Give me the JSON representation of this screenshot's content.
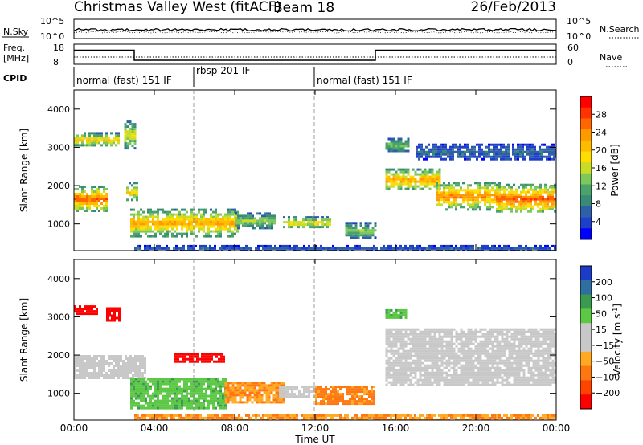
{
  "header": {
    "title": "Christmas Valley West (fitACF)",
    "beam": "Beam 18",
    "date": "26/Feb/2013"
  },
  "noise_panel": {
    "left_label": "N.Sky",
    "right_label": "N.Search",
    "left_ticks": [
      "10^5",
      "10^0"
    ],
    "right_ticks": [
      "10^5",
      "10^0"
    ]
  },
  "freq_panel": {
    "left_label_line1": "Freq.",
    "left_label_line2": "[MHz]",
    "left_ticks": [
      "18",
      "8"
    ],
    "right_ticks": [
      "60",
      "0"
    ],
    "right_label": "Nave",
    "freq_steps": [
      {
        "from": 0,
        "to": 3,
        "mhz": 15
      },
      {
        "from": 3,
        "to": 15,
        "mhz": 10
      },
      {
        "from": 15,
        "to": 24,
        "mhz": 15
      }
    ]
  },
  "cpid_panel": {
    "label": "CPID",
    "segments": [
      {
        "from": 0,
        "to": 6,
        "name": "normal (fast) 151 IF"
      },
      {
        "from": 6,
        "to": 12,
        "name": "rbsp 201 IF"
      },
      {
        "from": 12,
        "to": 24,
        "name": "normal (fast) 151 IF"
      }
    ]
  },
  "power_colorbar": {
    "label": "Power [dB]",
    "ticks": [
      "28",
      "24",
      "20",
      "16",
      "12",
      "8",
      "4"
    ],
    "colors": [
      "#ff0000",
      "#ff3300",
      "#ff6600",
      "#ff9900",
      "#ffbb00",
      "#ffdd00",
      "#c8dc28",
      "#7dc85a",
      "#4aa36a",
      "#3a8a78",
      "#2e5fa8",
      "#1e3fc8",
      "#0000ff"
    ]
  },
  "velocity_colorbar": {
    "label": "Velocity [m s",
    "label_sup": "-1",
    "label_close": "]",
    "ticks": [
      "200",
      "100",
      "50",
      "15",
      "−15",
      "−50",
      "−100",
      "−200"
    ],
    "colors": [
      "#1c3cc8",
      "#2e6fa0",
      "#3c9a50",
      "#5cc846",
      "#c8c8c8",
      "#c8c8c8",
      "#ffaa22",
      "#ff7711",
      "#ff4400",
      "#ff0000"
    ]
  },
  "y_axis_label": "Slant Range [km]",
  "x_axis_label": "Time UT",
  "chart_data": {
    "type": "heatmap",
    "x_unit": "hours UT",
    "xlim": [
      0,
      24
    ],
    "ylim": [
      300,
      4500
    ],
    "x_ticks": [
      "00:00",
      "04:00",
      "08:00",
      "12:00",
      "16:00",
      "20:00",
      "00:00"
    ],
    "y_ticks": [
      "1000",
      "2000",
      "3000",
      "4000"
    ],
    "power_regions": [
      {
        "t0": 0.0,
        "t1": 1.6,
        "r0": 1350,
        "r1": 2000,
        "db": 26
      },
      {
        "t0": 0.0,
        "t1": 2.2,
        "r0": 3050,
        "r1": 3400,
        "db": 20
      },
      {
        "t0": 2.5,
        "t1": 3.0,
        "r0": 3000,
        "r1": 3700,
        "db": 17
      },
      {
        "t0": 2.6,
        "t1": 3.1,
        "r0": 1600,
        "r1": 2100,
        "db": 18
      },
      {
        "t0": 2.8,
        "t1": 8.2,
        "r0": 700,
        "r1": 1400,
        "db": 22
      },
      {
        "t0": 8.0,
        "t1": 10.0,
        "r0": 900,
        "r1": 1300,
        "db": 14
      },
      {
        "t0": 10.4,
        "t1": 12.8,
        "r0": 900,
        "r1": 1200,
        "db": 18
      },
      {
        "t0": 13.5,
        "t1": 15.0,
        "r0": 650,
        "r1": 1050,
        "db": 13
      },
      {
        "t0": 15.5,
        "t1": 18.2,
        "r0": 1900,
        "r1": 2450,
        "db": 22
      },
      {
        "t0": 18.0,
        "t1": 21.2,
        "r0": 1400,
        "r1": 2100,
        "db": 24
      },
      {
        "t0": 21.0,
        "t1": 24.0,
        "r0": 1300,
        "r1": 2050,
        "db": 26
      },
      {
        "t0": 15.5,
        "t1": 16.6,
        "r0": 2900,
        "r1": 3250,
        "db": 12
      },
      {
        "t0": 17.0,
        "t1": 24.0,
        "r0": 2700,
        "r1": 3100,
        "db": 6
      },
      {
        "t0": 3.0,
        "t1": 24.0,
        "r0": 300,
        "r1": 450,
        "db": 5
      }
    ],
    "velocity_regions": [
      {
        "t0": 0.0,
        "t1": 1.2,
        "r0": 3100,
        "r1": 3300,
        "v": -200
      },
      {
        "t0": 1.6,
        "t1": 2.3,
        "r0": 2900,
        "r1": 3250,
        "v": -200
      },
      {
        "t0": 0.0,
        "t1": 3.5,
        "r0": 1400,
        "r1": 2000,
        "v": 0
      },
      {
        "t0": 5.0,
        "t1": 7.5,
        "r0": 1850,
        "r1": 2050,
        "v": -200
      },
      {
        "t0": 2.8,
        "t1": 7.5,
        "r0": 600,
        "r1": 1400,
        "v": 40
      },
      {
        "t0": 7.5,
        "t1": 10.5,
        "r0": 750,
        "r1": 1300,
        "v": -50
      },
      {
        "t0": 10.2,
        "t1": 12.0,
        "r0": 900,
        "r1": 1200,
        "v": 0
      },
      {
        "t0": 12.0,
        "t1": 15.0,
        "r0": 700,
        "r1": 1200,
        "v": -60
      },
      {
        "t0": 15.5,
        "t1": 16.5,
        "r0": 2950,
        "r1": 3200,
        "v": 40
      },
      {
        "t0": 15.5,
        "t1": 24.0,
        "r0": 1200,
        "r1": 2700,
        "v": 0
      },
      {
        "t0": 3.0,
        "t1": 24.0,
        "r0": 300,
        "r1": 450,
        "v": -50
      }
    ]
  }
}
